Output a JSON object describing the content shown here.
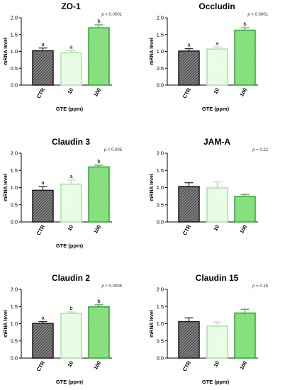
{
  "colors": {
    "ctr_fill": "#8a8a8a",
    "ctr_stroke": "#1a1a1a",
    "g10_fill": "#e4fbe1",
    "g10_stroke": "#a6e39f",
    "g100_fill": "#7ada71",
    "g100_stroke": "#2fa52f",
    "axis": "#000000"
  },
  "chart_data": [
    {
      "type": "bar",
      "title": "ZO-1",
      "categories": [
        "CTR",
        "10",
        "100"
      ],
      "values": [
        1.02,
        0.96,
        1.7
      ],
      "errors": [
        0.08,
        0.06,
        0.09
      ],
      "sig_letters": [
        "a",
        "a",
        "b"
      ],
      "p_label": "p",
      "p_value": "< 0.0001",
      "ylabel": "mRNA level",
      "xlabel": "GTE (ppm)",
      "ylim": [
        0,
        2.0
      ],
      "yticks": [
        "0.0",
        "0.5",
        "1.0",
        "1.5",
        "2.0"
      ]
    },
    {
      "type": "bar",
      "title": "Occludin",
      "categories": [
        "CTR",
        "10",
        "100"
      ],
      "values": [
        1.01,
        1.07,
        1.63
      ],
      "errors": [
        0.07,
        0.06,
        0.07
      ],
      "sig_letters": [
        "a",
        "a",
        "b"
      ],
      "p_label": "p",
      "p_value": "< 0.0001",
      "ylabel": "mRNA level",
      "xlabel": "GTE (ppm)",
      "ylim": [
        0,
        2.0
      ],
      "yticks": [
        "0.0",
        "0.5",
        "1.0",
        "1.5",
        "2.0"
      ]
    },
    {
      "type": "bar",
      "title": "Claudin 3",
      "categories": [
        "CTR",
        "10",
        "100"
      ],
      "values": [
        0.92,
        1.1,
        1.6
      ],
      "errors": [
        0.11,
        0.12,
        0.05
      ],
      "sig_letters": [
        "a",
        "a",
        "b"
      ],
      "p_label": "p",
      "p_value": "< 0.005",
      "ylabel": "mRNA level",
      "xlabel": "GTE (ppm)",
      "ylim": [
        0,
        2.0
      ],
      "yticks": [
        "0.0",
        "0.5",
        "1.0",
        "1.5",
        "2.0"
      ]
    },
    {
      "type": "bar",
      "title": "JAM-A",
      "categories": [
        "CTR",
        "10",
        "100"
      ],
      "values": [
        1.03,
        0.99,
        0.74
      ],
      "errors": [
        0.11,
        0.17,
        0.06
      ],
      "sig_letters": [
        "",
        "",
        ""
      ],
      "p_label": "p",
      "p_value": "= 0.22",
      "ylabel": "mRNA level",
      "xlabel": "",
      "ylim": [
        0,
        2.0
      ],
      "yticks": [
        "0.0",
        "0.5",
        "1.0",
        "1.5",
        "2.0"
      ]
    },
    {
      "type": "bar",
      "title": "Claudin 2",
      "categories": [
        "CTR",
        "10",
        "100"
      ],
      "values": [
        1.01,
        1.3,
        1.49
      ],
      "errors": [
        0.05,
        0.04,
        0.06
      ],
      "sig_letters": [
        "a",
        "b",
        "b"
      ],
      "p_label": "p",
      "p_value": "< 0.0005",
      "ylabel": "mRNA level",
      "xlabel": "GTE (ppm)",
      "ylim": [
        0,
        2.0
      ],
      "yticks": [
        "0.0",
        "0.5",
        "1.0",
        "1.5",
        "2.0"
      ]
    },
    {
      "type": "bar",
      "title": "Claudin 15",
      "categories": [
        "CTR",
        "10",
        "100"
      ],
      "values": [
        1.06,
        0.93,
        1.31
      ],
      "errors": [
        0.11,
        0.12,
        0.11
      ],
      "sig_letters": [
        "",
        "",
        ""
      ],
      "p_label": "p",
      "p_value": "= 0.15",
      "ylabel": "mRNA level",
      "xlabel": "GTE (ppm)",
      "ylim": [
        0,
        2.0
      ],
      "yticks": [
        "0.0",
        "0.5",
        "1.0",
        "1.5",
        "2.0"
      ]
    }
  ]
}
